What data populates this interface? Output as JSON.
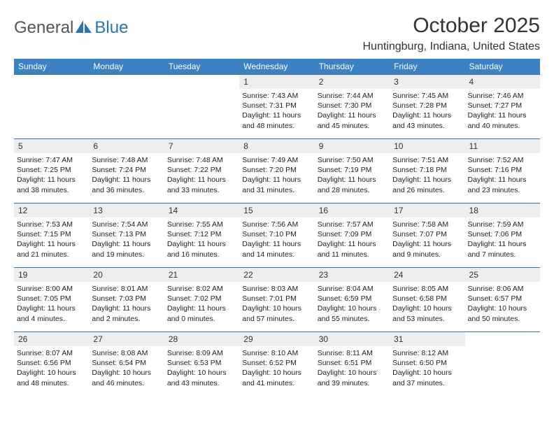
{
  "logo": {
    "part1": "General",
    "part2": "Blue"
  },
  "title": "October 2025",
  "location": "Huntingburg, Indiana, United States",
  "colors": {
    "headerBg": "#3b82c4",
    "headerText": "#ffffff",
    "dayNumBg": "#eeeeee",
    "borderColor": "#3b6fa0",
    "logoAccent": "#2974b8",
    "logoGray": "#555555"
  },
  "dayNames": [
    "Sunday",
    "Monday",
    "Tuesday",
    "Wednesday",
    "Thursday",
    "Friday",
    "Saturday"
  ],
  "weeks": [
    [
      null,
      null,
      null,
      {
        "n": "1",
        "sr": "7:43 AM",
        "ss": "7:31 PM",
        "dl": "11 hours and 48 minutes."
      },
      {
        "n": "2",
        "sr": "7:44 AM",
        "ss": "7:30 PM",
        "dl": "11 hours and 45 minutes."
      },
      {
        "n": "3",
        "sr": "7:45 AM",
        "ss": "7:28 PM",
        "dl": "11 hours and 43 minutes."
      },
      {
        "n": "4",
        "sr": "7:46 AM",
        "ss": "7:27 PM",
        "dl": "11 hours and 40 minutes."
      }
    ],
    [
      {
        "n": "5",
        "sr": "7:47 AM",
        "ss": "7:25 PM",
        "dl": "11 hours and 38 minutes."
      },
      {
        "n": "6",
        "sr": "7:48 AM",
        "ss": "7:24 PM",
        "dl": "11 hours and 36 minutes."
      },
      {
        "n": "7",
        "sr": "7:48 AM",
        "ss": "7:22 PM",
        "dl": "11 hours and 33 minutes."
      },
      {
        "n": "8",
        "sr": "7:49 AM",
        "ss": "7:20 PM",
        "dl": "11 hours and 31 minutes."
      },
      {
        "n": "9",
        "sr": "7:50 AM",
        "ss": "7:19 PM",
        "dl": "11 hours and 28 minutes."
      },
      {
        "n": "10",
        "sr": "7:51 AM",
        "ss": "7:18 PM",
        "dl": "11 hours and 26 minutes."
      },
      {
        "n": "11",
        "sr": "7:52 AM",
        "ss": "7:16 PM",
        "dl": "11 hours and 23 minutes."
      }
    ],
    [
      {
        "n": "12",
        "sr": "7:53 AM",
        "ss": "7:15 PM",
        "dl": "11 hours and 21 minutes."
      },
      {
        "n": "13",
        "sr": "7:54 AM",
        "ss": "7:13 PM",
        "dl": "11 hours and 19 minutes."
      },
      {
        "n": "14",
        "sr": "7:55 AM",
        "ss": "7:12 PM",
        "dl": "11 hours and 16 minutes."
      },
      {
        "n": "15",
        "sr": "7:56 AM",
        "ss": "7:10 PM",
        "dl": "11 hours and 14 minutes."
      },
      {
        "n": "16",
        "sr": "7:57 AM",
        "ss": "7:09 PM",
        "dl": "11 hours and 11 minutes."
      },
      {
        "n": "17",
        "sr": "7:58 AM",
        "ss": "7:07 PM",
        "dl": "11 hours and 9 minutes."
      },
      {
        "n": "18",
        "sr": "7:59 AM",
        "ss": "7:06 PM",
        "dl": "11 hours and 7 minutes."
      }
    ],
    [
      {
        "n": "19",
        "sr": "8:00 AM",
        "ss": "7:05 PM",
        "dl": "11 hours and 4 minutes."
      },
      {
        "n": "20",
        "sr": "8:01 AM",
        "ss": "7:03 PM",
        "dl": "11 hours and 2 minutes."
      },
      {
        "n": "21",
        "sr": "8:02 AM",
        "ss": "7:02 PM",
        "dl": "11 hours and 0 minutes."
      },
      {
        "n": "22",
        "sr": "8:03 AM",
        "ss": "7:01 PM",
        "dl": "10 hours and 57 minutes."
      },
      {
        "n": "23",
        "sr": "8:04 AM",
        "ss": "6:59 PM",
        "dl": "10 hours and 55 minutes."
      },
      {
        "n": "24",
        "sr": "8:05 AM",
        "ss": "6:58 PM",
        "dl": "10 hours and 53 minutes."
      },
      {
        "n": "25",
        "sr": "8:06 AM",
        "ss": "6:57 PM",
        "dl": "10 hours and 50 minutes."
      }
    ],
    [
      {
        "n": "26",
        "sr": "8:07 AM",
        "ss": "6:56 PM",
        "dl": "10 hours and 48 minutes."
      },
      {
        "n": "27",
        "sr": "8:08 AM",
        "ss": "6:54 PM",
        "dl": "10 hours and 46 minutes."
      },
      {
        "n": "28",
        "sr": "8:09 AM",
        "ss": "6:53 PM",
        "dl": "10 hours and 43 minutes."
      },
      {
        "n": "29",
        "sr": "8:10 AM",
        "ss": "6:52 PM",
        "dl": "10 hours and 41 minutes."
      },
      {
        "n": "30",
        "sr": "8:11 AM",
        "ss": "6:51 PM",
        "dl": "10 hours and 39 minutes."
      },
      {
        "n": "31",
        "sr": "8:12 AM",
        "ss": "6:50 PM",
        "dl": "10 hours and 37 minutes."
      },
      null
    ]
  ],
  "labels": {
    "sunrise": "Sunrise: ",
    "sunset": "Sunset: ",
    "daylight": "Daylight: "
  }
}
